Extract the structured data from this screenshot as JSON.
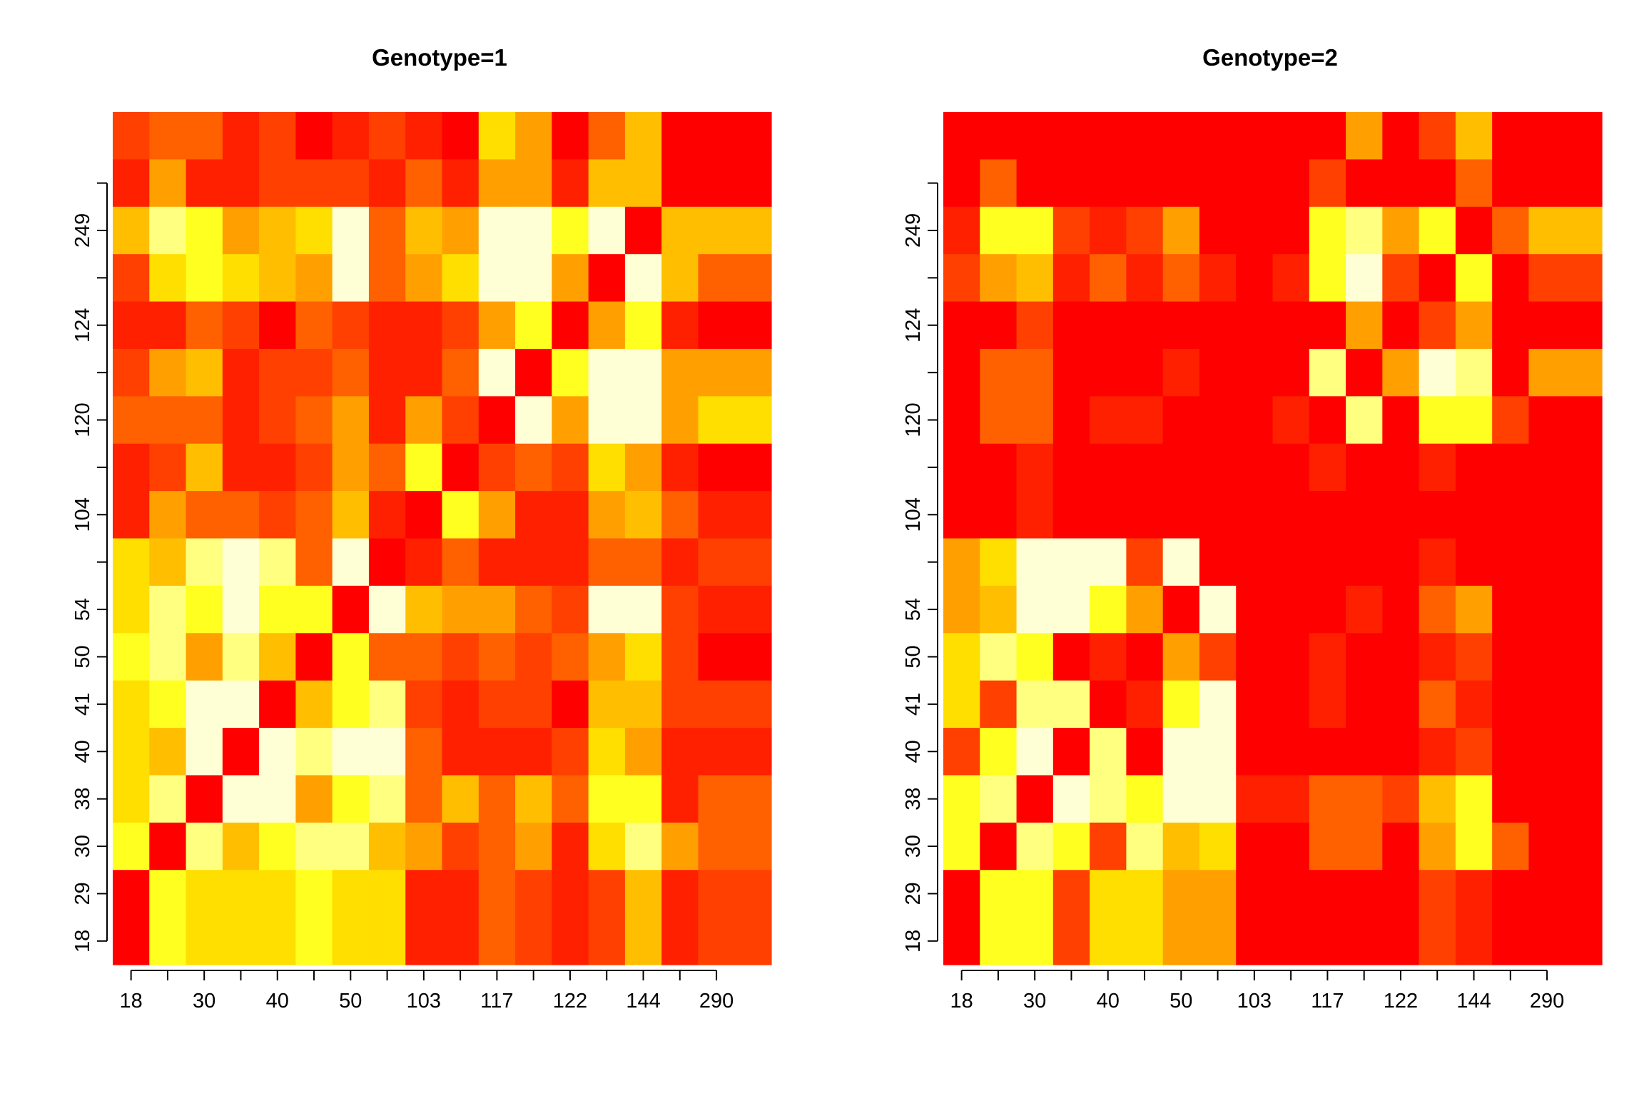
{
  "chart_data": [
    {
      "type": "heatmap",
      "title": "Genotype=1",
      "xlabel": "",
      "ylabel": "",
      "x_tick_labels": [
        "18",
        "30",
        "40",
        "50",
        "103",
        "117",
        "122",
        "144",
        "290"
      ],
      "y_tick_labels": [
        "18",
        "29",
        "30",
        "38",
        "40",
        "41",
        "50",
        "54",
        "104",
        "120",
        "124",
        "249"
      ],
      "rows": 18,
      "cols": 18,
      "color_scale": "heat (red = low, light yellow = high)",
      "palette": [
        "#FF0000",
        "#FF2000",
        "#FF4000",
        "#FF6000",
        "#FFA000",
        "#FFBF00",
        "#FFDF00",
        "#FFFF20",
        "#FFFF80",
        "#FFFFD5"
      ],
      "grid_rows_top_to_bottom": [
        [
          2,
          3,
          3,
          1,
          2,
          0,
          1,
          2,
          1,
          0,
          6,
          4,
          0,
          3,
          5,
          0,
          0,
          0
        ],
        [
          1,
          4,
          1,
          1,
          2,
          2,
          2,
          1,
          3,
          1,
          4,
          4,
          1,
          5,
          5,
          0,
          0,
          0
        ],
        [
          5,
          8,
          7,
          4,
          5,
          6,
          9,
          3,
          5,
          4,
          9,
          9,
          7,
          9,
          0,
          5,
          5,
          5
        ],
        [
          2,
          6,
          7,
          6,
          5,
          4,
          9,
          3,
          4,
          6,
          9,
          9,
          4,
          0,
          9,
          5,
          3,
          3
        ],
        [
          1,
          1,
          3,
          2,
          0,
          3,
          2,
          1,
          1,
          2,
          4,
          7,
          0,
          4,
          7,
          1,
          0,
          0
        ],
        [
          2,
          4,
          5,
          1,
          2,
          2,
          3,
          1,
          1,
          3,
          9,
          0,
          7,
          9,
          9,
          4,
          4,
          4
        ],
        [
          3,
          3,
          3,
          1,
          2,
          3,
          4,
          1,
          4,
          2,
          0,
          9,
          4,
          9,
          9,
          4,
          6,
          6
        ],
        [
          1,
          2,
          5,
          1,
          1,
          2,
          4,
          3,
          7,
          0,
          2,
          3,
          2,
          6,
          4,
          1,
          0,
          0
        ],
        [
          1,
          4,
          3,
          3,
          2,
          3,
          5,
          1,
          0,
          7,
          4,
          1,
          1,
          4,
          5,
          3,
          1,
          1
        ],
        [
          6,
          5,
          8,
          9,
          8,
          3,
          9,
          0,
          1,
          3,
          1,
          1,
          1,
          3,
          3,
          1,
          2,
          2
        ],
        [
          6,
          8,
          7,
          9,
          7,
          7,
          0,
          9,
          5,
          4,
          4,
          3,
          2,
          9,
          9,
          2,
          1,
          1
        ],
        [
          7,
          8,
          4,
          8,
          5,
          0,
          7,
          3,
          3,
          2,
          3,
          2,
          3,
          4,
          6,
          2,
          0,
          0
        ],
        [
          6,
          7,
          9,
          9,
          0,
          5,
          7,
          8,
          2,
          1,
          2,
          2,
          0,
          5,
          5,
          2,
          2,
          2
        ],
        [
          6,
          5,
          9,
          0,
          9,
          8,
          9,
          9,
          3,
          1,
          1,
          1,
          2,
          6,
          4,
          1,
          1,
          1
        ],
        [
          6,
          8,
          0,
          9,
          9,
          4,
          7,
          8,
          3,
          5,
          3,
          5,
          3,
          7,
          7,
          1,
          3,
          3
        ],
        [
          7,
          0,
          8,
          5,
          7,
          8,
          8,
          5,
          4,
          2,
          3,
          4,
          1,
          6,
          8,
          4,
          3,
          3
        ],
        [
          0,
          7,
          6,
          6,
          6,
          7,
          6,
          6,
          1,
          1,
          3,
          2,
          1,
          2,
          5,
          1,
          2,
          2
        ],
        [
          0,
          7,
          6,
          6,
          6,
          7,
          6,
          6,
          1,
          1,
          3,
          2,
          1,
          2,
          5,
          1,
          2,
          2
        ]
      ]
    },
    {
      "type": "heatmap",
      "title": "Genotype=2",
      "xlabel": "",
      "ylabel": "",
      "x_tick_labels": [
        "18",
        "30",
        "40",
        "50",
        "103",
        "117",
        "122",
        "144",
        "290"
      ],
      "y_tick_labels": [
        "18",
        "29",
        "30",
        "38",
        "40",
        "41",
        "50",
        "54",
        "104",
        "120",
        "124",
        "249"
      ],
      "rows": 18,
      "cols": 18,
      "color_scale": "heat (red = low, light yellow = high)",
      "palette": [
        "#FF0000",
        "#FF2000",
        "#FF4000",
        "#FF6000",
        "#FFA000",
        "#FFBF00",
        "#FFDF00",
        "#FFFF20",
        "#FFFF80",
        "#FFFFD5"
      ],
      "grid_rows_top_to_bottom": [
        [
          0,
          0,
          0,
          0,
          0,
          0,
          0,
          0,
          0,
          0,
          0,
          4,
          0,
          2,
          5,
          0,
          0,
          0
        ],
        [
          0,
          3,
          0,
          0,
          0,
          0,
          0,
          0,
          0,
          0,
          2,
          0,
          0,
          0,
          3,
          0,
          0,
          0
        ],
        [
          1,
          7,
          7,
          2,
          1,
          2,
          4,
          0,
          0,
          0,
          7,
          8,
          4,
          7,
          0,
          3,
          5,
          5
        ],
        [
          2,
          4,
          5,
          1,
          3,
          1,
          3,
          1,
          0,
          1,
          7,
          9,
          2,
          0,
          7,
          0,
          2,
          2
        ],
        [
          0,
          0,
          2,
          0,
          0,
          0,
          0,
          0,
          0,
          0,
          0,
          4,
          0,
          2,
          4,
          0,
          0,
          0
        ],
        [
          0,
          3,
          3,
          0,
          0,
          0,
          1,
          0,
          0,
          0,
          8,
          0,
          4,
          9,
          8,
          0,
          4,
          4
        ],
        [
          0,
          3,
          3,
          0,
          1,
          1,
          0,
          0,
          0,
          1,
          0,
          8,
          0,
          7,
          7,
          2,
          0,
          0
        ],
        [
          0,
          0,
          1,
          0,
          0,
          0,
          0,
          0,
          0,
          0,
          1,
          0,
          0,
          1,
          0,
          0,
          0,
          0
        ],
        [
          0,
          0,
          1,
          0,
          0,
          0,
          0,
          0,
          0,
          0,
          0,
          0,
          0,
          0,
          0,
          0,
          0,
          0
        ],
        [
          4,
          6,
          9,
          9,
          9,
          2,
          9,
          0,
          0,
          0,
          0,
          0,
          0,
          1,
          0,
          0,
          0,
          0
        ],
        [
          4,
          5,
          9,
          9,
          7,
          4,
          0,
          9,
          0,
          0,
          0,
          1,
          0,
          3,
          4,
          0,
          0,
          0
        ],
        [
          6,
          8,
          7,
          0,
          1,
          0,
          4,
          2,
          0,
          0,
          1,
          0,
          0,
          1,
          2,
          0,
          0,
          0
        ],
        [
          6,
          2,
          8,
          8,
          0,
          1,
          7,
          9,
          0,
          0,
          1,
          0,
          0,
          3,
          1,
          0,
          0,
          0
        ],
        [
          2,
          7,
          9,
          0,
          8,
          0,
          9,
          9,
          0,
          0,
          0,
          0,
          0,
          1,
          2,
          0,
          0,
          0
        ],
        [
          7,
          8,
          0,
          9,
          8,
          7,
          9,
          9,
          1,
          1,
          3,
          3,
          2,
          5,
          7,
          0,
          0,
          0
        ],
        [
          7,
          0,
          8,
          7,
          2,
          8,
          5,
          6,
          0,
          0,
          3,
          3,
          0,
          4,
          7,
          3,
          0,
          0
        ],
        [
          0,
          7,
          7,
          2,
          6,
          6,
          4,
          4,
          0,
          0,
          0,
          0,
          0,
          2,
          1,
          0,
          0,
          0
        ],
        [
          0,
          7,
          7,
          2,
          6,
          6,
          4,
          4,
          0,
          0,
          0,
          0,
          0,
          2,
          1,
          0,
          0,
          0
        ]
      ]
    }
  ]
}
